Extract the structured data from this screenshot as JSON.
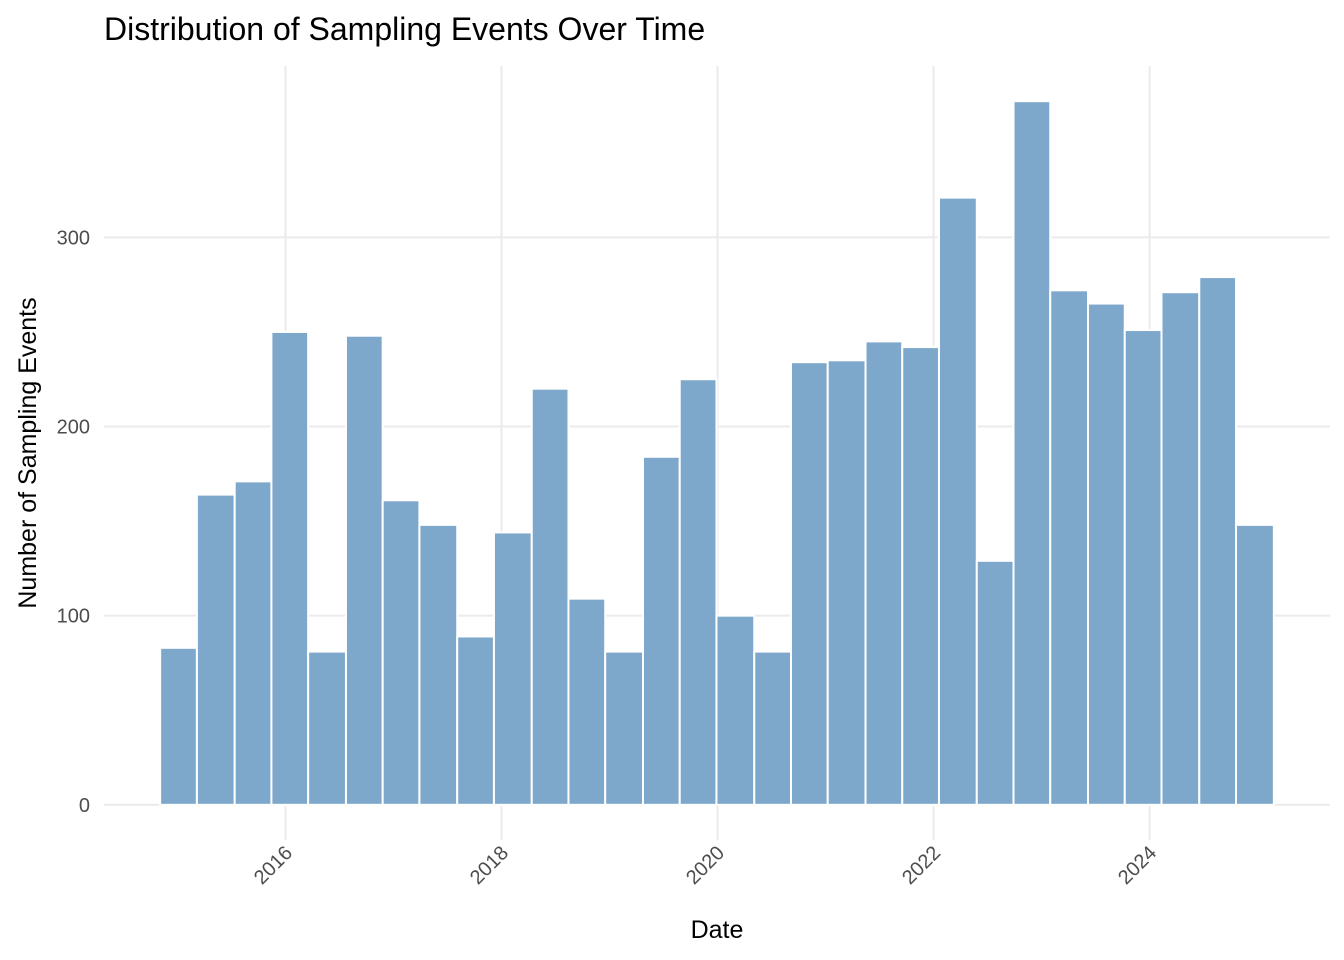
{
  "chart_data": {
    "type": "histogram",
    "title": "Distribution of Sampling Events Over Time",
    "x_label": "Date",
    "y_label": "Number of Sampling Events",
    "bins": [
      2014.84,
      2015.18,
      2015.53,
      2015.87,
      2016.21,
      2016.56,
      2016.9,
      2017.24,
      2017.59,
      2017.93,
      2018.28,
      2018.62,
      2018.96,
      2019.31,
      2019.65,
      2019.99,
      2020.34,
      2020.68,
      2021.02,
      2021.37,
      2021.71,
      2022.05,
      2022.4,
      2022.74,
      2023.08,
      2023.43,
      2023.77,
      2024.11,
      2024.46,
      2024.8,
      2025.15
    ],
    "values": [
      83,
      164,
      171,
      250,
      81,
      248,
      161,
      148,
      89,
      144,
      220,
      109,
      81,
      184,
      225,
      100,
      81,
      234,
      235,
      245,
      242,
      321,
      129,
      372,
      272,
      265,
      251,
      271,
      279,
      148
    ],
    "color": "#7da7cb",
    "xlim": [
      2014.32,
      2025.67
    ],
    "xticks": [
      2016,
      2018,
      2020,
      2022,
      2024
    ],
    "ylim": [
      -18.6,
      390.6
    ],
    "yticks": [
      0,
      100,
      200,
      300
    ],
    "grid": true
  }
}
